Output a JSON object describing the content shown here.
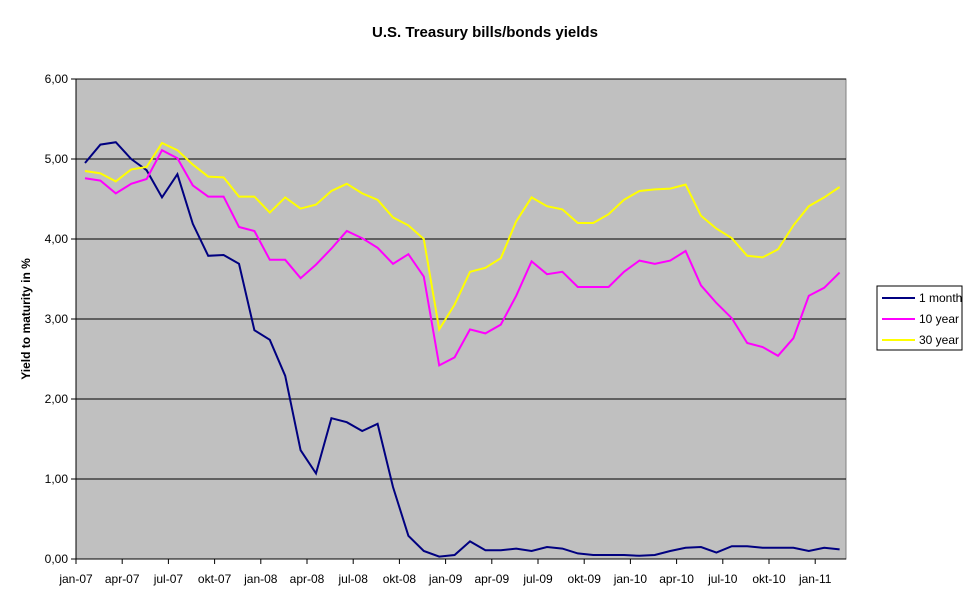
{
  "chart_data": {
    "type": "line",
    "title": "U.S. Treasury bills/bonds yields",
    "xlabel": "",
    "ylabel": "Yield to maturity in %",
    "ylim": [
      0,
      6
    ],
    "yticks": [
      "0,00",
      "1,00",
      "2,00",
      "3,00",
      "4,00",
      "5,00",
      "6,00"
    ],
    "xticks": [
      "jan-07",
      "apr-07",
      "jul-07",
      "okt-07",
      "jan-08",
      "apr-08",
      "jul-08",
      "okt-08",
      "jan-09",
      "apr-09",
      "jul-09",
      "okt-09",
      "jan-10",
      "apr-10",
      "jul-10",
      "okt-10",
      "jan-11"
    ],
    "grid": "horizontal",
    "legend_position": "right",
    "plot_background": "#c0c0c0",
    "series": [
      {
        "name": "1 month",
        "color": "#000080",
        "values": [
          4.95,
          5.18,
          5.21,
          5.0,
          4.86,
          4.52,
          4.81,
          4.19,
          3.79,
          3.8,
          3.69,
          2.86,
          2.74,
          2.29,
          1.36,
          1.07,
          1.76,
          1.71,
          1.6,
          1.69,
          0.9,
          0.29,
          0.1,
          0.03,
          0.05,
          0.22,
          0.11,
          0.11,
          0.13,
          0.1,
          0.15,
          0.13,
          0.07,
          0.05,
          0.05,
          0.05,
          0.04,
          0.05,
          0.1,
          0.14,
          0.15,
          0.08,
          0.16,
          0.16,
          0.14,
          0.14,
          0.14,
          0.1,
          0.14,
          0.12
        ]
      },
      {
        "name": "10 year",
        "color": "#ff00ff",
        "values": [
          4.76,
          4.73,
          4.57,
          4.69,
          4.75,
          5.11,
          5.01,
          4.67,
          4.53,
          4.53,
          4.15,
          4.1,
          3.74,
          3.74,
          3.51,
          3.68,
          3.88,
          4.1,
          4.01,
          3.89,
          3.69,
          3.81,
          3.53,
          2.42,
          2.52,
          2.87,
          2.82,
          2.93,
          3.29,
          3.72,
          3.56,
          3.59,
          3.4,
          3.4,
          3.4,
          3.59,
          3.73,
          3.69,
          3.73,
          3.85,
          3.42,
          3.2,
          3.01,
          2.7,
          2.65,
          2.54,
          2.76,
          3.29,
          3.39,
          3.58
        ]
      },
      {
        "name": "30 year",
        "color": "#ffff00",
        "values": [
          4.85,
          4.82,
          4.72,
          4.87,
          4.9,
          5.2,
          5.11,
          4.93,
          4.78,
          4.77,
          4.53,
          4.53,
          4.33,
          4.52,
          4.38,
          4.43,
          4.6,
          4.69,
          4.57,
          4.49,
          4.27,
          4.17,
          4.0,
          2.87,
          3.18,
          3.59,
          3.64,
          3.76,
          4.22,
          4.52,
          4.41,
          4.37,
          4.2,
          4.2,
          4.31,
          4.49,
          4.6,
          4.62,
          4.63,
          4.68,
          4.29,
          4.13,
          4.01,
          3.79,
          3.77,
          3.87,
          4.17,
          4.41,
          4.52,
          4.65
        ]
      }
    ]
  }
}
